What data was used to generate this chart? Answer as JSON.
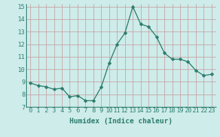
{
  "x": [
    0,
    1,
    2,
    3,
    4,
    5,
    6,
    7,
    8,
    9,
    10,
    11,
    12,
    13,
    14,
    15,
    16,
    17,
    18,
    19,
    20,
    21,
    22,
    23
  ],
  "y": [
    8.9,
    8.7,
    8.6,
    8.4,
    8.5,
    7.8,
    7.9,
    7.5,
    7.5,
    8.6,
    10.5,
    12.0,
    12.9,
    15.0,
    13.6,
    13.4,
    12.6,
    11.3,
    10.8,
    10.8,
    10.6,
    9.9,
    9.5,
    9.6
  ],
  "xlim": [
    -0.5,
    23.5
  ],
  "ylim": [
    7,
    15.2
  ],
  "yticks": [
    7,
    8,
    9,
    10,
    11,
    12,
    13,
    14,
    15
  ],
  "xticks": [
    0,
    1,
    2,
    3,
    4,
    5,
    6,
    7,
    8,
    9,
    10,
    11,
    12,
    13,
    14,
    15,
    16,
    17,
    18,
    19,
    20,
    21,
    22,
    23
  ],
  "xlabel": "Humidex (Indice chaleur)",
  "line_color": "#2d7d6e",
  "marker": "D",
  "marker_size": 2.5,
  "bg_color": "#cdecea",
  "grid_color_major": "#c8a0a0",
  "grid_color_minor": "#c8a0a0",
  "tick_label_fontsize": 6.5,
  "xlabel_fontsize": 7.5,
  "xlabel_fontweight": "bold",
  "tick_color": "#2d7d6e",
  "xlabel_color": "#2d7d6e"
}
